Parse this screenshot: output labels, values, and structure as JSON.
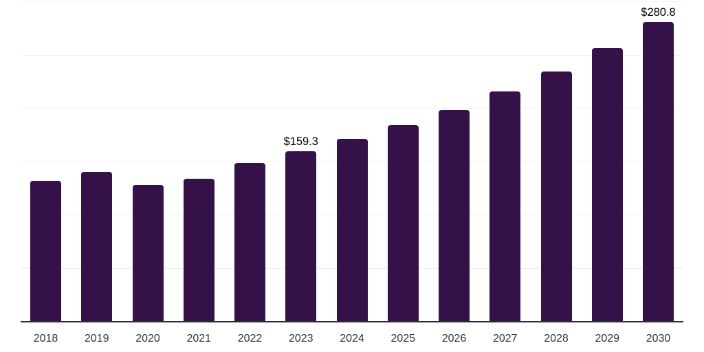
{
  "chart_data": {
    "type": "bar",
    "title": "",
    "xlabel": "",
    "ylabel": "",
    "categories": [
      "2018",
      "2019",
      "2020",
      "2021",
      "2022",
      "2023",
      "2024",
      "2025",
      "2026",
      "2027",
      "2028",
      "2029",
      "2030"
    ],
    "values": [
      131.8,
      140.0,
      128.0,
      133.5,
      148.5,
      159.3,
      170.9,
      183.7,
      198.3,
      215.5,
      234.4,
      256.2,
      280.8
    ],
    "data_labels": [
      {
        "category": "2023",
        "text": "$159.3"
      },
      {
        "category": "2030",
        "text": "$280.8"
      }
    ],
    "ylim": [
      0,
      300
    ],
    "gridline_values": [
      50,
      100,
      150,
      200,
      250,
      300
    ],
    "grid": "horizontal",
    "legend": "none",
    "y_axis_tick_labels_visible": false,
    "colors": {
      "bar": "#351149",
      "axis": "#2e2e2e",
      "gridline": "#f0f0f0",
      "year_label": "#333333",
      "data_label": "#000000",
      "background": "#ffffff"
    }
  }
}
